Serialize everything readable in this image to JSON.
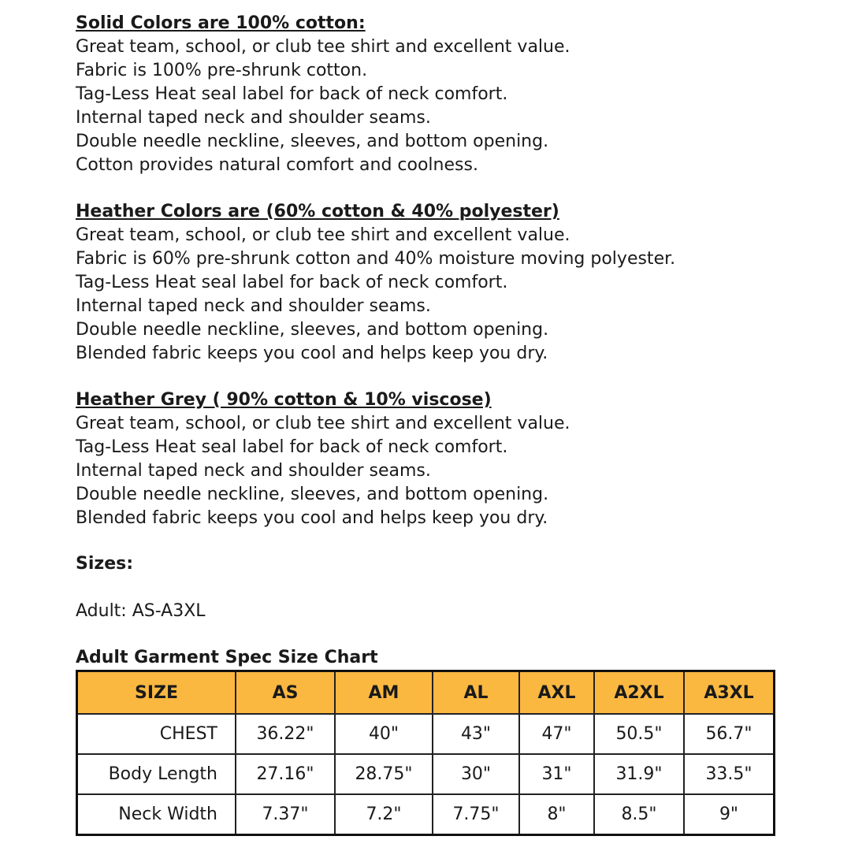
{
  "sections": [
    {
      "heading": "Solid Colors are 100% cotton:",
      "lines": [
        "Great team, school, or club tee shirt and excellent value.",
        "Fabric is 100% pre-shrunk cotton.",
        "Tag-Less Heat seal label for back of neck comfort.",
        "Internal taped neck and shoulder seams.",
        "Double needle neckline, sleeves, and bottom opening.",
        "Cotton provides natural comfort and coolness."
      ]
    },
    {
      "heading": "Heather Colors are (60% cotton & 40% polyester)",
      "lines": [
        "Great team, school, or club tee shirt and excellent value.",
        "Fabric is 60% pre-shrunk cotton and 40% moisture moving polyester.",
        "Tag-Less Heat seal label for back of neck comfort.",
        "Internal taped neck and shoulder seams.",
        "Double needle neckline, sleeves, and bottom opening.",
        "Blended fabric keeps you cool and helps keep you dry."
      ]
    },
    {
      "heading": "Heather Grey ( 90% cotton & 10% viscose)",
      "lines": [
        "Great team, school, or club tee shirt and excellent value.",
        "Tag-Less Heat seal label for back of neck comfort.",
        "Internal taped neck and shoulder seams.",
        "Double needle neckline, sleeves, and bottom opening.",
        "Blended fabric keeps you cool and helps keep you dry."
      ]
    }
  ],
  "sizes": {
    "heading": "Sizes:",
    "adult": "Adult: AS-A3XL"
  },
  "chart": {
    "title": "Adult Garment Spec Size Chart",
    "header_color": "#fbb840",
    "columns": [
      "SIZE",
      "AS",
      "AM",
      "AL",
      "AXL",
      "A2XL",
      "A3XL"
    ],
    "rows": [
      [
        "CHEST",
        "36.22\"",
        "40\"",
        "43\"",
        "47\"",
        "50.5\"",
        "56.7\""
      ],
      [
        "Body Length",
        "27.16\"",
        "28.75\"",
        "30\"",
        "31\"",
        "31.9\"",
        "33.5\""
      ],
      [
        "Neck Width",
        "7.37\"",
        "7.2\"",
        "7.75\"",
        "8\"",
        "8.5\"",
        "9\""
      ]
    ]
  }
}
